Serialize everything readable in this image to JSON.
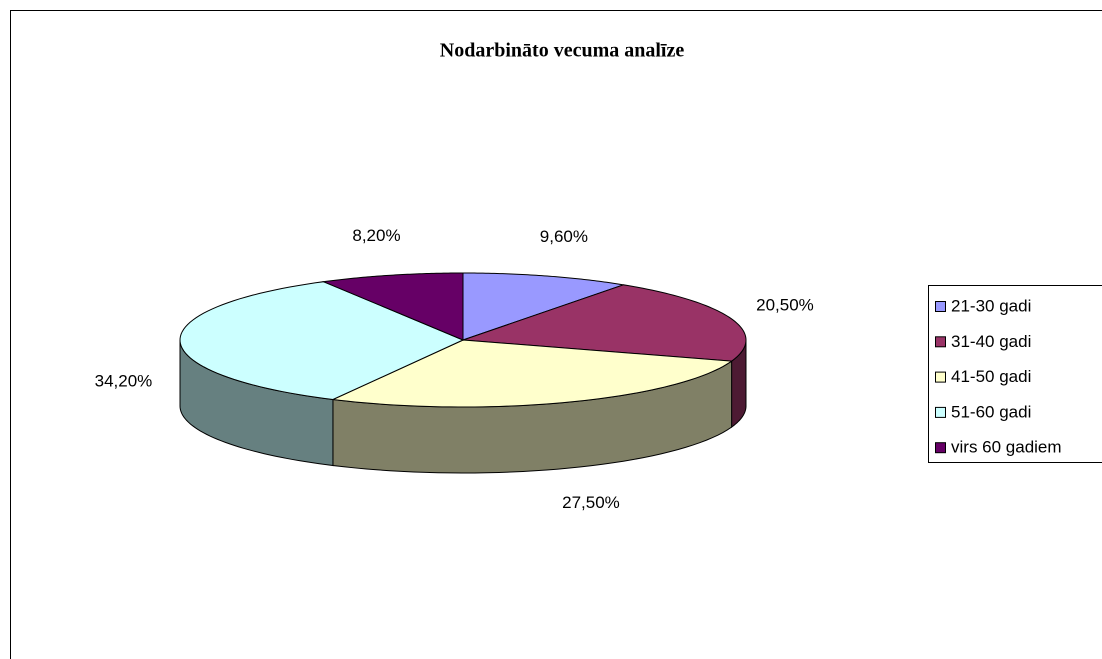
{
  "chart_data": {
    "type": "pie",
    "title": "Nodarbināto vecuma analīze",
    "categories": [
      "21-30 gadi",
      "31-40 gadi",
      "41-50 gadi",
      "51-60 gadi",
      "virs 60 gadiem"
    ],
    "values": [
      9.6,
      20.5,
      27.5,
      34.2,
      8.2
    ],
    "value_labels": [
      "9,60%",
      "20,50%",
      "27,50%",
      "34,20%",
      "8,20%"
    ],
    "colors": [
      "#9999ff",
      "#993366",
      "#ffffcc",
      "#ccffff",
      "#660066"
    ],
    "legend": "right"
  }
}
